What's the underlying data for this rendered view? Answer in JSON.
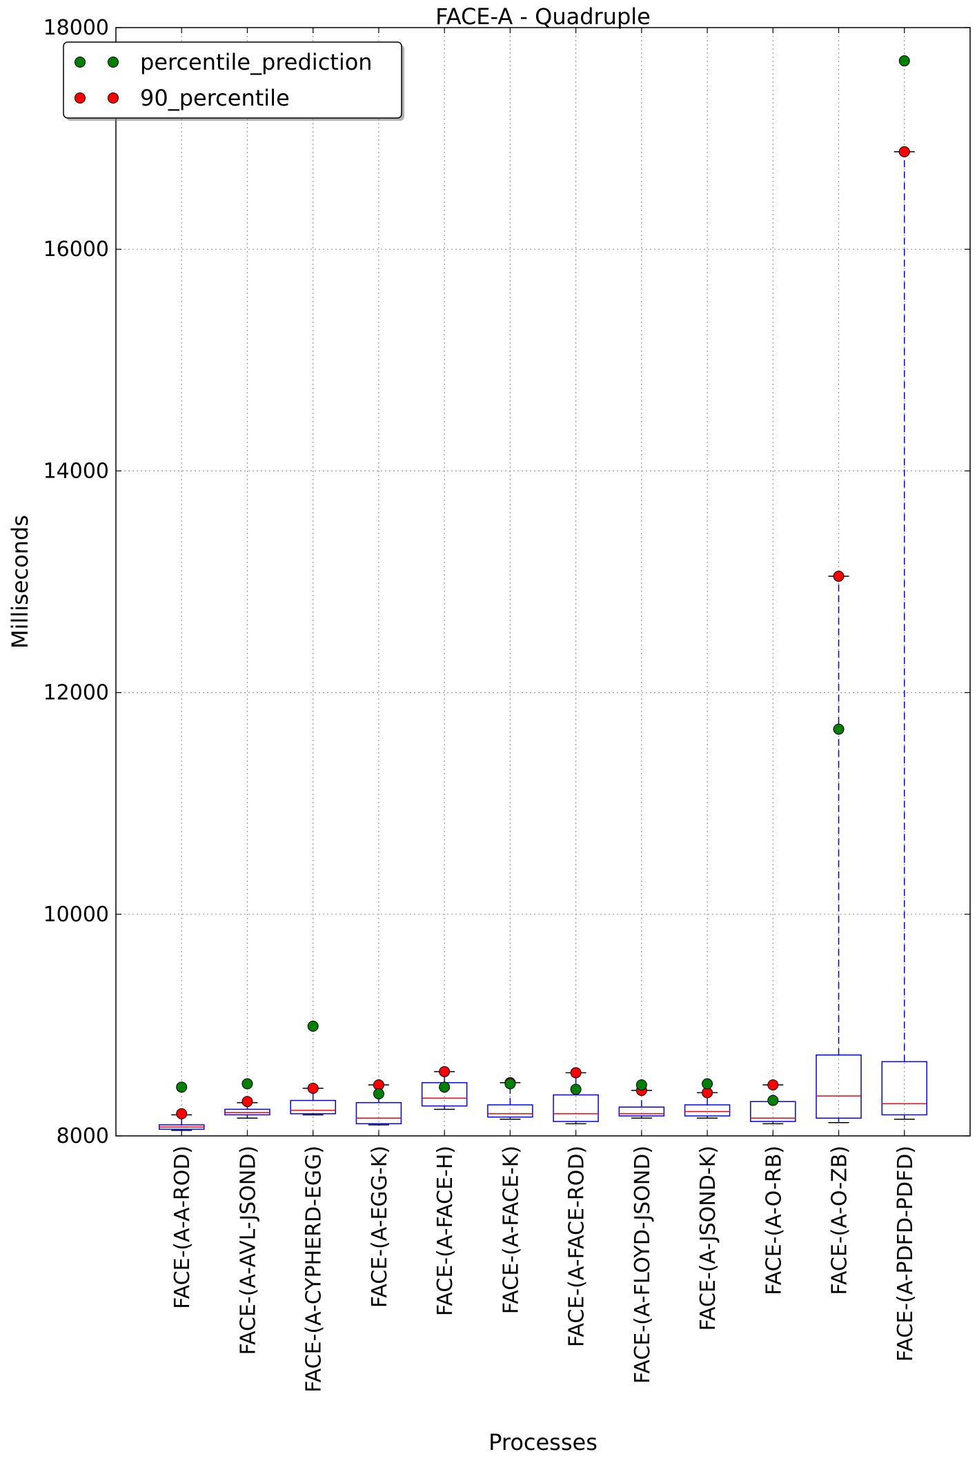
{
  "chart_data": {
    "type": "box",
    "title": "FACE-A - Quadruple",
    "xlabel": "Processes",
    "ylabel": "Milliseconds",
    "ylim": [
      8000,
      18000
    ],
    "yticks": [
      8000,
      10000,
      12000,
      14000,
      16000,
      18000
    ],
    "grid": true,
    "legend_position": "top-left",
    "colors": {
      "box": "#0000ff",
      "median": "#ff0000",
      "percentile_prediction": "#008000",
      "90_percentile": "#ff0000"
    },
    "legend": [
      {
        "key": "percentile_prediction",
        "label": "percentile_prediction"
      },
      {
        "key": "90_percentile",
        "label": "90_percentile"
      }
    ],
    "categories": [
      "FACE-(A-A-ROD)",
      "FACE-(A-AVL-JSOND)",
      "FACE-(A-CYPHERD-EGG)",
      "FACE-(A-EGG-K)",
      "FACE-(A-FACE-H)",
      "FACE-(A-FACE-K)",
      "FACE-(A-FACE-ROD)",
      "FACE-(A-FLOYD-JSOND)",
      "FACE-(A-JSOND-K)",
      "FACE-(A-O-RB)",
      "FACE-(A-O-ZB)",
      "FACE-(A-PDFD-PDFD)"
    ],
    "boxes": [
      {
        "whisker_low": 8050,
        "q1": 8060,
        "median": 8080,
        "q3": 8100,
        "whisker_high": 8190
      },
      {
        "whisker_low": 8160,
        "q1": 8190,
        "median": 8210,
        "q3": 8240,
        "whisker_high": 8300
      },
      {
        "whisker_low": 8190,
        "q1": 8200,
        "median": 8230,
        "q3": 8320,
        "whisker_high": 8430
      },
      {
        "whisker_low": 8100,
        "q1": 8110,
        "median": 8160,
        "q3": 8300,
        "whisker_high": 8460
      },
      {
        "whisker_low": 8240,
        "q1": 8270,
        "median": 8340,
        "q3": 8480,
        "whisker_high": 8580
      },
      {
        "whisker_low": 8150,
        "q1": 8170,
        "median": 8200,
        "q3": 8280,
        "whisker_high": 8480
      },
      {
        "whisker_low": 8110,
        "q1": 8130,
        "median": 8200,
        "q3": 8370,
        "whisker_high": 8570
      },
      {
        "whisker_low": 8160,
        "q1": 8180,
        "median": 8200,
        "q3": 8260,
        "whisker_high": 8410
      },
      {
        "whisker_low": 8160,
        "q1": 8180,
        "median": 8220,
        "q3": 8280,
        "whisker_high": 8390
      },
      {
        "whisker_low": 8110,
        "q1": 8130,
        "median": 8160,
        "q3": 8310,
        "whisker_high": 8460
      },
      {
        "whisker_low": 8120,
        "q1": 8160,
        "median": 8360,
        "q3": 8730,
        "whisker_high": 13050
      },
      {
        "whisker_low": 8150,
        "q1": 8190,
        "median": 8290,
        "q3": 8670,
        "whisker_high": 16880
      }
    ],
    "series": [
      {
        "key": "percentile_prediction",
        "values": [
          8440,
          8470,
          8990,
          8380,
          8440,
          8470,
          8420,
          8460,
          8470,
          8320,
          11670,
          17700
        ]
      },
      {
        "key": "90_percentile",
        "values": [
          8200,
          8310,
          8430,
          8460,
          8580,
          8480,
          8570,
          8410,
          8390,
          8460,
          13050,
          16880
        ]
      }
    ]
  }
}
